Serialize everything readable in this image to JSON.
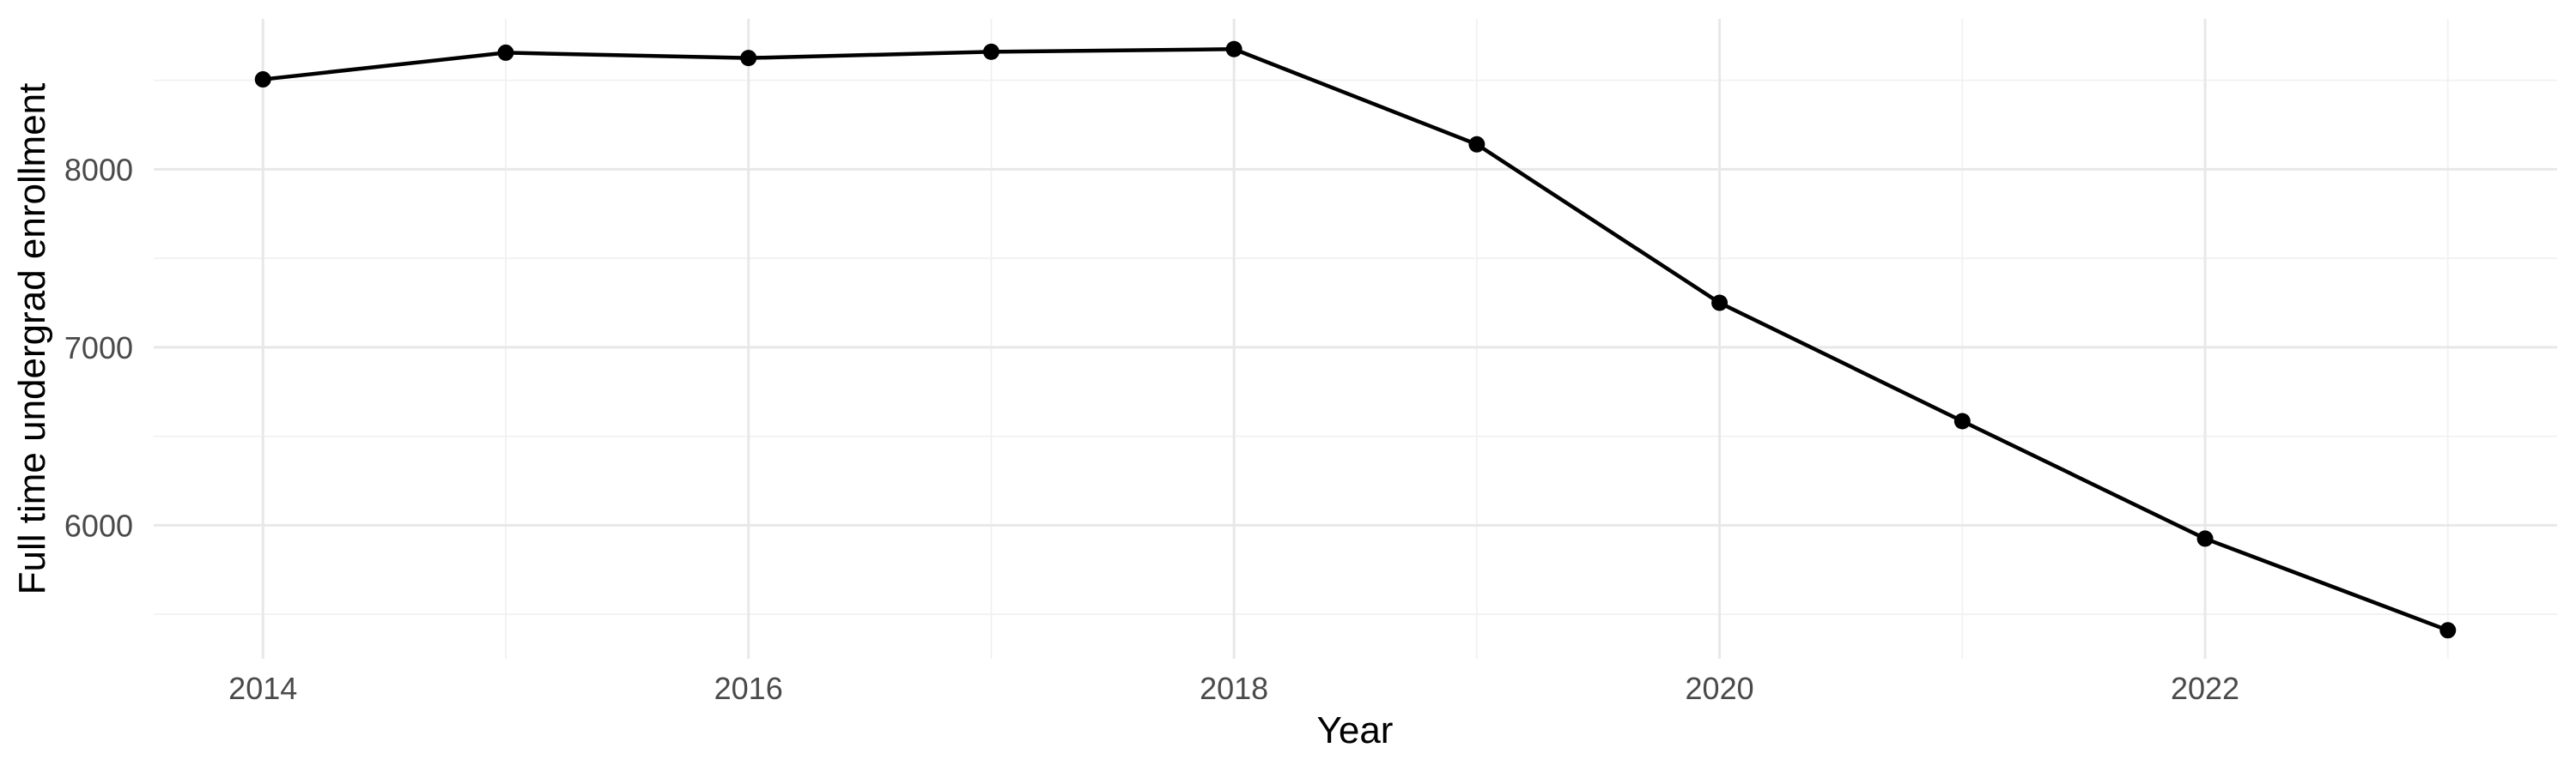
{
  "chart_data": {
    "type": "line",
    "title": "",
    "xlabel": "Year",
    "ylabel": "Full time undergrad enrollment",
    "x": [
      2014,
      2015,
      2016,
      2017,
      2018,
      2019,
      2020,
      2021,
      2022,
      2023
    ],
    "series": [
      {
        "name": "Full time undergrad enrollment",
        "values": [
          8505,
          8655,
          8625,
          8660,
          8675,
          8140,
          7250,
          6585,
          5925,
          5410
        ]
      }
    ],
    "x_tick_labels": [
      "2014",
      "2016",
      "2018",
      "2020",
      "2022"
    ],
    "x_ticks": [
      2014,
      2016,
      2018,
      2020,
      2022
    ],
    "x_minor_gridlines": [
      2015,
      2017,
      2019,
      2021,
      2023
    ],
    "y_tick_labels": [
      "6000",
      "7000",
      "8000"
    ],
    "y_ticks": [
      6000,
      7000,
      8000
    ],
    "y_minor_gridlines": [
      5500,
      6500,
      7500,
      8500
    ],
    "x_range": [
      2013.55,
      2023.45
    ],
    "y_range": [
      5250,
      8845
    ],
    "grid": "on",
    "legend": "none",
    "colors": {
      "line": "#000000",
      "point": "#000000",
      "grid_major": "#e8e8e8",
      "grid_minor": "#f1f1f1",
      "tick_label": "#4a4a4a",
      "axis_title": "#000000",
      "background": "#ffffff"
    }
  }
}
